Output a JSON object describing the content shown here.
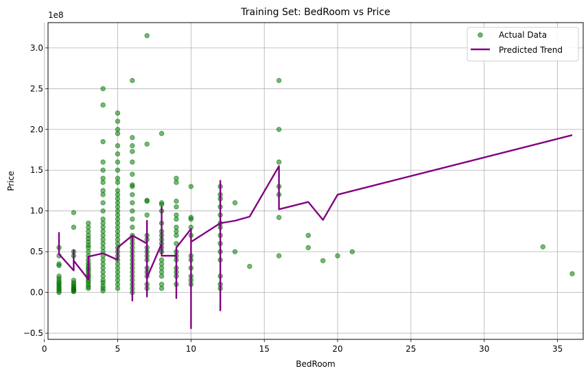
{
  "chart_data": {
    "type": "scatter",
    "title": "Training Set: BedRoom vs Price",
    "xlabel": "BedRoom",
    "ylabel": "Price",
    "y_offset_label": "1e8",
    "xlim": [
      0.25,
      36.75
    ],
    "ylim": [
      -0.575,
      3.31
    ],
    "x_ticks": [
      0,
      5,
      10,
      15,
      20,
      25,
      30,
      35
    ],
    "y_ticks": [
      -0.5,
      0.0,
      0.5,
      1.0,
      1.5,
      2.0,
      2.5,
      3.0
    ],
    "y_tick_labels": [
      "−0.5",
      "0.0",
      "0.5",
      "1.0",
      "1.5",
      "2.0",
      "2.5",
      "3.0"
    ],
    "grid": true,
    "legend_position": "top-right",
    "scatter_color": "#008000",
    "line_color": "#800080",
    "series": [
      {
        "name": "Actual Data",
        "kind": "scatter",
        "points": [
          [
            1,
            0.0
          ],
          [
            1,
            0.02
          ],
          [
            1,
            0.04
          ],
          [
            1,
            0.06
          ],
          [
            1,
            0.08
          ],
          [
            1,
            0.1
          ],
          [
            1,
            0.12
          ],
          [
            1,
            0.14
          ],
          [
            1,
            0.17
          ],
          [
            1,
            0.2
          ],
          [
            1,
            0.33
          ],
          [
            1,
            0.35
          ],
          [
            1,
            0.45
          ],
          [
            1,
            0.55
          ],
          [
            2,
            0.01
          ],
          [
            2,
            0.02
          ],
          [
            2,
            0.03
          ],
          [
            2,
            0.04
          ],
          [
            2,
            0.05
          ],
          [
            2,
            0.06
          ],
          [
            2,
            0.08
          ],
          [
            2,
            0.1
          ],
          [
            2,
            0.12
          ],
          [
            2,
            0.15
          ],
          [
            2,
            0.45
          ],
          [
            2,
            0.5
          ],
          [
            2,
            0.8
          ],
          [
            2,
            0.98
          ],
          [
            3,
            0.05
          ],
          [
            3,
            0.07
          ],
          [
            3,
            0.1
          ],
          [
            3,
            0.13
          ],
          [
            3,
            0.15
          ],
          [
            3,
            0.18
          ],
          [
            3,
            0.2
          ],
          [
            3,
            0.22
          ],
          [
            3,
            0.25
          ],
          [
            3,
            0.28
          ],
          [
            3,
            0.3
          ],
          [
            3,
            0.33
          ],
          [
            3,
            0.36
          ],
          [
            3,
            0.4
          ],
          [
            3,
            0.45
          ],
          [
            3,
            0.5
          ],
          [
            3,
            0.55
          ],
          [
            3,
            0.58
          ],
          [
            3,
            0.62
          ],
          [
            3,
            0.66
          ],
          [
            3,
            0.7
          ],
          [
            3,
            0.75
          ],
          [
            3,
            0.8
          ],
          [
            3,
            0.85
          ],
          [
            4,
            0.02
          ],
          [
            4,
            0.05
          ],
          [
            4,
            0.08
          ],
          [
            4,
            0.12
          ],
          [
            4,
            0.15
          ],
          [
            4,
            0.2
          ],
          [
            4,
            0.25
          ],
          [
            4,
            0.3
          ],
          [
            4,
            0.35
          ],
          [
            4,
            0.4
          ],
          [
            4,
            0.45
          ],
          [
            4,
            0.5
          ],
          [
            4,
            0.55
          ],
          [
            4,
            0.6
          ],
          [
            4,
            0.65
          ],
          [
            4,
            0.7
          ],
          [
            4,
            0.75
          ],
          [
            4,
            0.8
          ],
          [
            4,
            0.85
          ],
          [
            4,
            0.9
          ],
          [
            4,
            1.0
          ],
          [
            4,
            1.1
          ],
          [
            4,
            1.2
          ],
          [
            4,
            1.25
          ],
          [
            4,
            1.35
          ],
          [
            4,
            1.4
          ],
          [
            4,
            1.5
          ],
          [
            4,
            1.6
          ],
          [
            4,
            1.85
          ],
          [
            4,
            2.3
          ],
          [
            4,
            2.5
          ],
          [
            5,
            0.05
          ],
          [
            5,
            0.1
          ],
          [
            5,
            0.15
          ],
          [
            5,
            0.2
          ],
          [
            5,
            0.25
          ],
          [
            5,
            0.3
          ],
          [
            5,
            0.35
          ],
          [
            5,
            0.4
          ],
          [
            5,
            0.45
          ],
          [
            5,
            0.5
          ],
          [
            5,
            0.55
          ],
          [
            5,
            0.6
          ],
          [
            5,
            0.65
          ],
          [
            5,
            0.7
          ],
          [
            5,
            0.75
          ],
          [
            5,
            0.8
          ],
          [
            5,
            0.85
          ],
          [
            5,
            0.9
          ],
          [
            5,
            0.95
          ],
          [
            5,
            1.0
          ],
          [
            5,
            1.05
          ],
          [
            5,
            1.1
          ],
          [
            5,
            1.15
          ],
          [
            5,
            1.2
          ],
          [
            5,
            1.25
          ],
          [
            5,
            1.35
          ],
          [
            5,
            1.4
          ],
          [
            5,
            1.5
          ],
          [
            5,
            1.6
          ],
          [
            5,
            1.7
          ],
          [
            5,
            1.8
          ],
          [
            5,
            1.95
          ],
          [
            5,
            2.0
          ],
          [
            5,
            2.1
          ],
          [
            5,
            2.2
          ],
          [
            6,
            0.0
          ],
          [
            6,
            0.05
          ],
          [
            6,
            0.1
          ],
          [
            6,
            0.15
          ],
          [
            6,
            0.2
          ],
          [
            6,
            0.25
          ],
          [
            6,
            0.3
          ],
          [
            6,
            0.35
          ],
          [
            6,
            0.4
          ],
          [
            6,
            0.45
          ],
          [
            6,
            0.5
          ],
          [
            6,
            0.55
          ],
          [
            6,
            0.6
          ],
          [
            6,
            0.65
          ],
          [
            6,
            0.7
          ],
          [
            6,
            0.8
          ],
          [
            6,
            0.9
          ],
          [
            6,
            1.0
          ],
          [
            6,
            1.1
          ],
          [
            6,
            1.2
          ],
          [
            6,
            1.3
          ],
          [
            6,
            1.32
          ],
          [
            6,
            1.45
          ],
          [
            6,
            1.6
          ],
          [
            6,
            1.73
          ],
          [
            6,
            1.8
          ],
          [
            6,
            1.9
          ],
          [
            6,
            2.6
          ],
          [
            7,
            0.05
          ],
          [
            7,
            0.1
          ],
          [
            7,
            0.2
          ],
          [
            7,
            0.25
          ],
          [
            7,
            0.3
          ],
          [
            7,
            0.4
          ],
          [
            7,
            0.45
          ],
          [
            7,
            0.5
          ],
          [
            7,
            0.55
          ],
          [
            7,
            0.65
          ],
          [
            7,
            0.7
          ],
          [
            7,
            0.95
          ],
          [
            7,
            1.12
          ],
          [
            7,
            1.13
          ],
          [
            7,
            1.82
          ],
          [
            7,
            3.15
          ],
          [
            8,
            0.05
          ],
          [
            8,
            0.1
          ],
          [
            8,
            0.2
          ],
          [
            8,
            0.25
          ],
          [
            8,
            0.3
          ],
          [
            8,
            0.35
          ],
          [
            8,
            0.4
          ],
          [
            8,
            0.5
          ],
          [
            8,
            0.55
          ],
          [
            8,
            0.6
          ],
          [
            8,
            0.65
          ],
          [
            8,
            0.7
          ],
          [
            8,
            0.75
          ],
          [
            8,
            0.85
          ],
          [
            8,
            1.0
          ],
          [
            8,
            1.08
          ],
          [
            8,
            1.1
          ],
          [
            8,
            1.95
          ],
          [
            9,
            0.1
          ],
          [
            9,
            0.2
          ],
          [
            9,
            0.25
          ],
          [
            9,
            0.3
          ],
          [
            9,
            0.4
          ],
          [
            9,
            0.45
          ],
          [
            9,
            0.5
          ],
          [
            9,
            0.6
          ],
          [
            9,
            0.7
          ],
          [
            9,
            0.75
          ],
          [
            9,
            0.8
          ],
          [
            9,
            0.9
          ],
          [
            9,
            0.95
          ],
          [
            9,
            1.05
          ],
          [
            9,
            1.12
          ],
          [
            9,
            1.35
          ],
          [
            9,
            1.4
          ],
          [
            10,
            0.1
          ],
          [
            10,
            0.15
          ],
          [
            10,
            0.2
          ],
          [
            10,
            0.3
          ],
          [
            10,
            0.4
          ],
          [
            10,
            0.45
          ],
          [
            10,
            0.7
          ],
          [
            10,
            0.8
          ],
          [
            10,
            0.9
          ],
          [
            10,
            0.92
          ],
          [
            10,
            1.3
          ],
          [
            12,
            0.05
          ],
          [
            12,
            0.1
          ],
          [
            12,
            0.2
          ],
          [
            12,
            0.4
          ],
          [
            12,
            0.5
          ],
          [
            12,
            0.6
          ],
          [
            12,
            0.7
          ],
          [
            12,
            0.8
          ],
          [
            12,
            0.85
          ],
          [
            12,
            0.95
          ],
          [
            12,
            1.05
          ],
          [
            12,
            1.15
          ],
          [
            12,
            1.2
          ],
          [
            12,
            1.3
          ],
          [
            13,
            0.5
          ],
          [
            13,
            1.1
          ],
          [
            14,
            0.32
          ],
          [
            16,
            0.45
          ],
          [
            16,
            0.92
          ],
          [
            16,
            1.2
          ],
          [
            16,
            1.3
          ],
          [
            16,
            1.6
          ],
          [
            16,
            2.0
          ],
          [
            16,
            2.6
          ],
          [
            18,
            0.55
          ],
          [
            18,
            0.7
          ],
          [
            19,
            0.39
          ],
          [
            20,
            0.45
          ],
          [
            21,
            0.5
          ],
          [
            34,
            0.56
          ],
          [
            36,
            0.23
          ]
        ]
      },
      {
        "name": "Predicted Trend",
        "kind": "line",
        "points": [
          [
            1,
            0.74
          ],
          [
            1,
            0.47
          ],
          [
            2,
            0.27
          ],
          [
            2,
            0.52
          ],
          [
            2,
            0.39
          ],
          [
            3,
            0.16
          ],
          [
            3,
            0.44
          ],
          [
            4,
            0.48
          ],
          [
            5,
            0.4
          ],
          [
            5,
            0.42
          ],
          [
            5,
            0.55
          ],
          [
            6,
            0.7
          ],
          [
            6,
            -0.1
          ],
          [
            6,
            0.7
          ],
          [
            7,
            0.6
          ],
          [
            7,
            0.88
          ],
          [
            7,
            -0.05
          ],
          [
            7,
            0.18
          ],
          [
            8,
            0.6
          ],
          [
            8,
            1.05
          ],
          [
            8,
            0.7
          ],
          [
            8,
            0.45
          ],
          [
            9,
            0.45
          ],
          [
            9,
            -0.07
          ],
          [
            9,
            0.55
          ],
          [
            10,
            0.78
          ],
          [
            10,
            -0.44
          ],
          [
            10,
            0.62
          ],
          [
            12,
            0.85
          ],
          [
            12,
            1.37
          ],
          [
            12,
            -0.22
          ],
          [
            12,
            0.85
          ],
          [
            13,
            0.88
          ],
          [
            14,
            0.93
          ],
          [
            16,
            1.55
          ],
          [
            16,
            1.02
          ],
          [
            18,
            1.11
          ],
          [
            19,
            0.89
          ],
          [
            20,
            1.2
          ],
          [
            36,
            1.93
          ]
        ]
      }
    ]
  }
}
